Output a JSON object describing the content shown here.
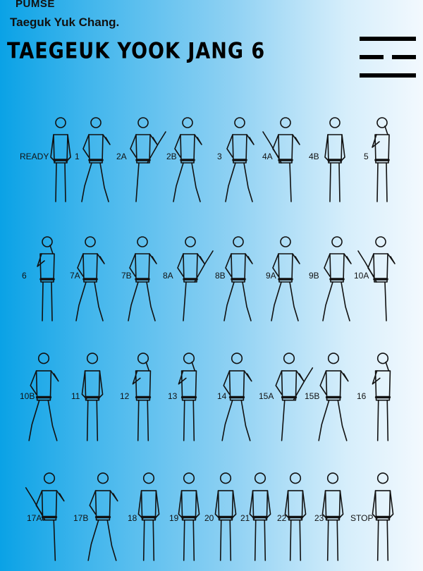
{
  "header": {
    "pumse": "PUMSE",
    "subtitle": "Taeguk Yuk Chang.",
    "title": "TAEGEUK YOOK JANG 6"
  },
  "trigram_icon": "gam-trigram-icon",
  "steps": [
    "READY",
    "1",
    "2A",
    "2B",
    "3",
    "4A",
    "4B",
    "5",
    "6",
    "7A",
    "7B",
    "8A",
    "8B",
    "9A",
    "9B",
    "10A",
    "10B",
    "11",
    "12",
    "13",
    "14",
    "15A",
    "15B",
    "16",
    "17A",
    "17B",
    "18",
    "19",
    "20",
    "21",
    "22",
    "23",
    "STOP"
  ],
  "colors": {
    "gradient_start": "#0aa2e6",
    "gradient_end": "#f3f9fe",
    "ink": "#111111"
  }
}
